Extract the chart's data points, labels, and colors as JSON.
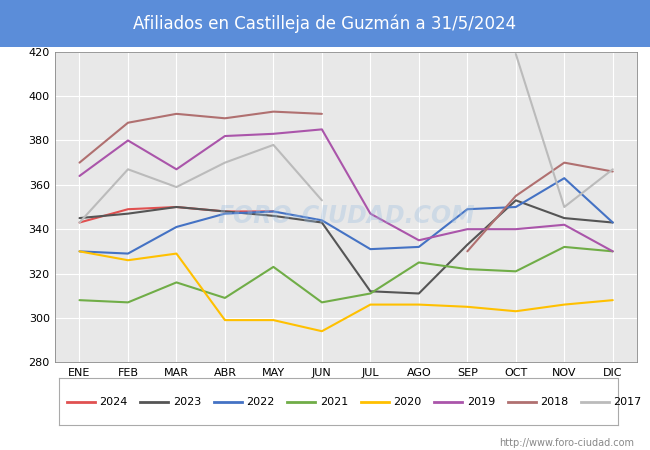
{
  "title": "Afiliados en Castilleja de Guzmán a 31/5/2024",
  "title_bg_color": "#5b8dd9",
  "title_text_color": "white",
  "ylim": [
    280,
    420
  ],
  "yticks": [
    280,
    300,
    320,
    340,
    360,
    380,
    400,
    420
  ],
  "months": [
    "ENE",
    "FEB",
    "MAR",
    "ABR",
    "MAY",
    "JUN",
    "JUL",
    "AGO",
    "SEP",
    "OCT",
    "NOV",
    "DIC"
  ],
  "series": {
    "2024": {
      "color": "#e05050",
      "data": [
        343,
        349,
        350,
        348,
        348,
        null,
        null,
        null,
        null,
        null,
        null,
        null
      ]
    },
    "2023": {
      "color": "#555555",
      "data": [
        345,
        347,
        350,
        348,
        346,
        343,
        312,
        311,
        333,
        353,
        345,
        343
      ]
    },
    "2022": {
      "color": "#4472c4",
      "data": [
        330,
        329,
        341,
        347,
        348,
        344,
        331,
        332,
        349,
        350,
        363,
        343
      ]
    },
    "2021": {
      "color": "#70ad47",
      "data": [
        308,
        307,
        316,
        309,
        323,
        307,
        311,
        325,
        322,
        321,
        332,
        330
      ]
    },
    "2020": {
      "color": "#ffc000",
      "data": [
        330,
        326,
        329,
        299,
        299,
        294,
        306,
        306,
        305,
        303,
        306,
        308
      ]
    },
    "2019": {
      "color": "#aa55aa",
      "data": [
        364,
        380,
        367,
        382,
        383,
        385,
        347,
        335,
        340,
        340,
        342,
        330
      ]
    },
    "2018": {
      "color": "#b07070",
      "data": [
        370,
        388,
        392,
        390,
        393,
        392,
        null,
        null,
        330,
        355,
        370,
        366
      ]
    },
    "2017": {
      "color": "#bbbbbb",
      "data": [
        343,
        367,
        359,
        370,
        378,
        353,
        null,
        null,
        null,
        419,
        350,
        367
      ]
    }
  },
  "years_order": [
    "2024",
    "2023",
    "2022",
    "2021",
    "2020",
    "2019",
    "2018",
    "2017"
  ],
  "footer_text": "http://www.foro-ciudad.com",
  "footer_color": "#888888",
  "plot_bg": "#e8e8e8",
  "grid_color": "white"
}
